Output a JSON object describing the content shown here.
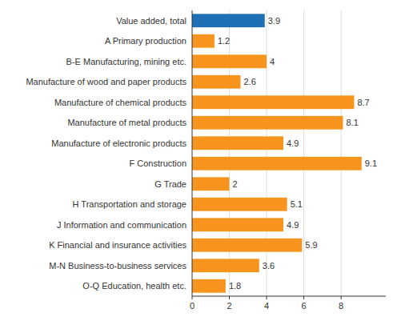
{
  "chart_data": {
    "type": "bar",
    "orientation": "horizontal",
    "categories": [
      "Value added, total",
      "A Primary production",
      "B-E Manufacturing, mining etc.",
      "Manufacture of wood and paper products",
      "Manufacture of chemical products",
      "Manufacture of metal products",
      "Manufacture of electronic products",
      "F Construction",
      "G Trade",
      "H Transportation and storage",
      "J Information and communication",
      "K Financial and insurance activities",
      "M-N Business-to-business services",
      "O-Q Education, health etc."
    ],
    "values": [
      3.9,
      1.2,
      4.0,
      2.6,
      8.7,
      8.1,
      4.9,
      9.1,
      2.0,
      5.1,
      4.9,
      5.9,
      3.6,
      1.8
    ],
    "colors": [
      "#1f6fb4",
      "#f7941d",
      "#f7941d",
      "#f7941d",
      "#f7941d",
      "#f7941d",
      "#f7941d",
      "#f7941d",
      "#f7941d",
      "#f7941d",
      "#f7941d",
      "#f7941d",
      "#f7941d",
      "#f7941d"
    ],
    "xlim": [
      0,
      10.4
    ],
    "xticks": [
      0,
      2,
      4,
      6,
      8
    ],
    "grid": true,
    "data_labels": true
  }
}
